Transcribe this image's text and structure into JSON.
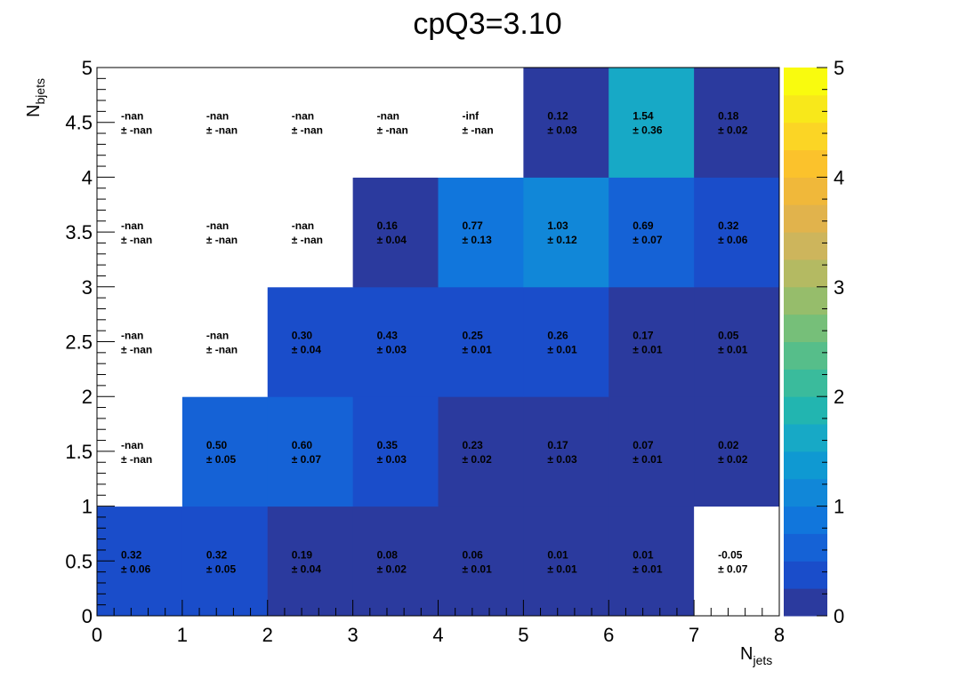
{
  "chart_data": {
    "type": "heatmap",
    "title": "cpQ3=3.10",
    "xlabel": {
      "main": "N",
      "sub": "jets"
    },
    "ylabel": {
      "main": "N",
      "sub": "bjets"
    },
    "xlim": [
      0,
      8
    ],
    "ylim": [
      0,
      5
    ],
    "zlim": [
      0,
      5
    ],
    "x_ticks": [
      "0",
      "1",
      "2",
      "3",
      "4",
      "5",
      "6",
      "7",
      "8"
    ],
    "y_ticks": [
      "0",
      "0.5",
      "1",
      "1.5",
      "2",
      "2.5",
      "3",
      "3.5",
      "4",
      "4.5",
      "5"
    ],
    "z_ticks": [
      "0",
      "1",
      "2",
      "3",
      "4",
      "5"
    ],
    "palette": [
      "#2b3a9e",
      "#1a4dca",
      "#1562d6",
      "#1176dc",
      "#1187d8",
      "#0f99d2",
      "#17a9c6",
      "#22b5b0",
      "#3abb9c",
      "#56be8a",
      "#76bf79",
      "#96bd6b",
      "#b4ba62",
      "#cdb55c",
      "#e1b34c",
      "#f0b83a",
      "#fbc22c",
      "#fbd525",
      "#f8e81a",
      "#f9fb0e"
    ],
    "empty_color": "#ffffff",
    "cells": [
      {
        "x": 0,
        "y": 0,
        "value": 0.32,
        "value_text": "0.32",
        "error_text": "± 0.06"
      },
      {
        "x": 1,
        "y": 0,
        "value": 0.32,
        "value_text": "0.32",
        "error_text": "± 0.05"
      },
      {
        "x": 2,
        "y": 0,
        "value": 0.19,
        "value_text": "0.19",
        "error_text": "± 0.04"
      },
      {
        "x": 3,
        "y": 0,
        "value": 0.08,
        "value_text": "0.08",
        "error_text": "± 0.02"
      },
      {
        "x": 4,
        "y": 0,
        "value": 0.06,
        "value_text": "0.06",
        "error_text": "± 0.01"
      },
      {
        "x": 5,
        "y": 0,
        "value": 0.01,
        "value_text": "0.01",
        "error_text": "± 0.01"
      },
      {
        "x": 6,
        "y": 0,
        "value": 0.01,
        "value_text": "0.01",
        "error_text": "± 0.01"
      },
      {
        "x": 7,
        "y": 0,
        "value": -0.05,
        "value_text": "-0.05",
        "error_text": "± 0.07"
      },
      {
        "x": 0,
        "y": 1,
        "value": null,
        "value_text": "-nan",
        "error_text": "± -nan"
      },
      {
        "x": 1,
        "y": 1,
        "value": 0.5,
        "value_text": "0.50",
        "error_text": "± 0.05"
      },
      {
        "x": 2,
        "y": 1,
        "value": 0.6,
        "value_text": "0.60",
        "error_text": "± 0.07"
      },
      {
        "x": 3,
        "y": 1,
        "value": 0.35,
        "value_text": "0.35",
        "error_text": "± 0.03"
      },
      {
        "x": 4,
        "y": 1,
        "value": 0.23,
        "value_text": "0.23",
        "error_text": "± 0.02"
      },
      {
        "x": 5,
        "y": 1,
        "value": 0.17,
        "value_text": "0.17",
        "error_text": "± 0.03"
      },
      {
        "x": 6,
        "y": 1,
        "value": 0.07,
        "value_text": "0.07",
        "error_text": "± 0.01"
      },
      {
        "x": 7,
        "y": 1,
        "value": 0.02,
        "value_text": "0.02",
        "error_text": "± 0.02"
      },
      {
        "x": 0,
        "y": 2,
        "value": null,
        "value_text": "-nan",
        "error_text": "± -nan"
      },
      {
        "x": 1,
        "y": 2,
        "value": null,
        "value_text": "-nan",
        "error_text": "± -nan"
      },
      {
        "x": 2,
        "y": 2,
        "value": 0.3,
        "value_text": "0.30",
        "error_text": "± 0.04"
      },
      {
        "x": 3,
        "y": 2,
        "value": 0.43,
        "value_text": "0.43",
        "error_text": "± 0.03"
      },
      {
        "x": 4,
        "y": 2,
        "value": 0.25,
        "value_text": "0.25",
        "error_text": "± 0.01"
      },
      {
        "x": 5,
        "y": 2,
        "value": 0.26,
        "value_text": "0.26",
        "error_text": "± 0.01"
      },
      {
        "x": 6,
        "y": 2,
        "value": 0.17,
        "value_text": "0.17",
        "error_text": "± 0.01"
      },
      {
        "x": 7,
        "y": 2,
        "value": 0.05,
        "value_text": "0.05",
        "error_text": "± 0.01"
      },
      {
        "x": 0,
        "y": 3,
        "value": null,
        "value_text": "-nan",
        "error_text": "± -nan"
      },
      {
        "x": 1,
        "y": 3,
        "value": null,
        "value_text": "-nan",
        "error_text": "± -nan"
      },
      {
        "x": 2,
        "y": 3,
        "value": null,
        "value_text": "-nan",
        "error_text": "± -nan"
      },
      {
        "x": 3,
        "y": 3,
        "value": 0.16,
        "value_text": "0.16",
        "error_text": "± 0.04"
      },
      {
        "x": 4,
        "y": 3,
        "value": 0.77,
        "value_text": "0.77",
        "error_text": "± 0.13"
      },
      {
        "x": 5,
        "y": 3,
        "value": 1.03,
        "value_text": "1.03",
        "error_text": "± 0.12"
      },
      {
        "x": 6,
        "y": 3,
        "value": 0.69,
        "value_text": "0.69",
        "error_text": "± 0.07"
      },
      {
        "x": 7,
        "y": 3,
        "value": 0.32,
        "value_text": "0.32",
        "error_text": "± 0.06"
      },
      {
        "x": 0,
        "y": 4,
        "value": null,
        "value_text": "-nan",
        "error_text": "± -nan"
      },
      {
        "x": 1,
        "y": 4,
        "value": null,
        "value_text": "-nan",
        "error_text": "± -nan"
      },
      {
        "x": 2,
        "y": 4,
        "value": null,
        "value_text": "-nan",
        "error_text": "± -nan"
      },
      {
        "x": 3,
        "y": 4,
        "value": null,
        "value_text": "-nan",
        "error_text": "± -nan"
      },
      {
        "x": 4,
        "y": 4,
        "value": null,
        "value_text": "-inf",
        "error_text": "± -nan"
      },
      {
        "x": 5,
        "y": 4,
        "value": 0.12,
        "value_text": "0.12",
        "error_text": "± 0.03"
      },
      {
        "x": 6,
        "y": 4,
        "value": 1.54,
        "value_text": "1.54",
        "error_text": "± 0.36"
      },
      {
        "x": 7,
        "y": 4,
        "value": 0.18,
        "value_text": "0.18",
        "error_text": "± 0.02"
      }
    ]
  }
}
